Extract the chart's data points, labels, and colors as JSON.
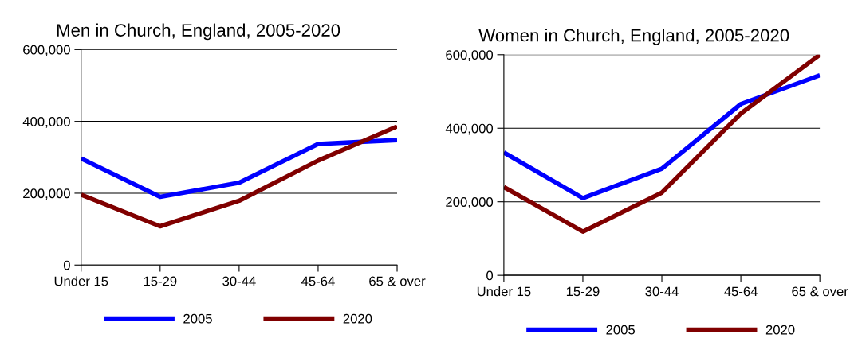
{
  "chart_data": [
    {
      "type": "line",
      "title": "Men in Church, England, 2005-2020",
      "categories": [
        "Under 15",
        "15-29",
        "30-44",
        "45-64",
        "65 & over"
      ],
      "series": [
        {
          "name": "2005",
          "color": "#0000ff",
          "values": [
            297000,
            190000,
            229000,
            337000,
            348000
          ]
        },
        {
          "name": "2020",
          "color": "#800000",
          "values": [
            196000,
            108000,
            179000,
            291000,
            386000
          ]
        }
      ],
      "ylim": [
        0,
        600000
      ],
      "yticks": [
        {
          "value": 0,
          "label": "0"
        },
        {
          "value": 200000,
          "label": "200,000"
        },
        {
          "value": 400000,
          "label": "400,000"
        },
        {
          "value": 600000,
          "label": "600,000"
        }
      ],
      "grid": "y",
      "legend": "bottom",
      "marker": "none",
      "line_style": "solid"
    },
    {
      "type": "line",
      "title": "Women in Church, England, 2005-2020",
      "categories": [
        "Under 15",
        "15-29",
        "30-44",
        "45-64",
        "65 & over"
      ],
      "series": [
        {
          "name": "2005",
          "color": "#0000ff",
          "values": [
            334000,
            210000,
            290000,
            466000,
            544000
          ]
        },
        {
          "name": "2020",
          "color": "#800000",
          "values": [
            240000,
            119000,
            225000,
            440000,
            600000
          ]
        }
      ],
      "ylim": [
        0,
        600000
      ],
      "yticks": [
        {
          "value": 0,
          "label": "0"
        },
        {
          "value": 200000,
          "label": "200,000"
        },
        {
          "value": 400000,
          "label": "400,000"
        },
        {
          "value": 600000,
          "label": "600,000"
        }
      ],
      "grid": "y",
      "legend": "bottom",
      "marker": "none",
      "line_style": "solid"
    }
  ]
}
